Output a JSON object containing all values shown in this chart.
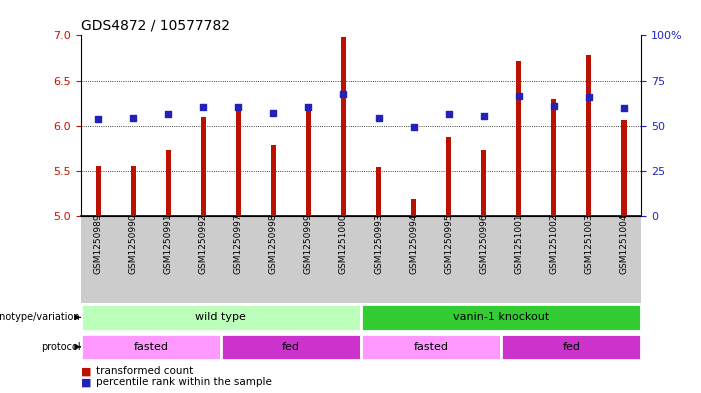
{
  "title": "GDS4872 / 10577782",
  "samples": [
    "GSM1250989",
    "GSM1250990",
    "GSM1250991",
    "GSM1250992",
    "GSM1250997",
    "GSM1250998",
    "GSM1250999",
    "GSM1251000",
    "GSM1250993",
    "GSM1250994",
    "GSM1250995",
    "GSM1250996",
    "GSM1251001",
    "GSM1251002",
    "GSM1251003",
    "GSM1251004"
  ],
  "bar_values": [
    5.56,
    5.55,
    5.73,
    6.1,
    6.2,
    5.79,
    6.16,
    6.98,
    5.54,
    5.19,
    5.88,
    5.73,
    6.72,
    6.3,
    6.78,
    6.06
  ],
  "dot_values": [
    6.08,
    6.09,
    6.13,
    6.21,
    6.21,
    6.14,
    6.21,
    6.35,
    6.09,
    5.99,
    6.13,
    6.11,
    6.33,
    6.22,
    6.32,
    6.2
  ],
  "ylim_left": [
    5.0,
    7.0
  ],
  "ylim_right": [
    0,
    100
  ],
  "yticks_left": [
    5.0,
    5.5,
    6.0,
    6.5,
    7.0
  ],
  "yticks_right": [
    0,
    25,
    50,
    75,
    100
  ],
  "ytick_labels_right": [
    "0",
    "25",
    "50",
    "75",
    "100%"
  ],
  "bar_color": "#bb1100",
  "dot_color": "#2222bb",
  "grid_color": "#000000",
  "bg_color": "#ffffff",
  "xtick_bg": "#cccccc",
  "genotype_groups": [
    {
      "label": "wild type",
      "start": 0,
      "end": 8,
      "color": "#bbffbb"
    },
    {
      "label": "vanin-1 knockout",
      "start": 8,
      "end": 16,
      "color": "#33cc33"
    }
  ],
  "protocol_groups": [
    {
      "label": "fasted",
      "start": 0,
      "end": 4,
      "color": "#ff99ff"
    },
    {
      "label": "fed",
      "start": 4,
      "end": 8,
      "color": "#cc33cc"
    },
    {
      "label": "fasted",
      "start": 8,
      "end": 12,
      "color": "#ff99ff"
    },
    {
      "label": "fed",
      "start": 12,
      "end": 16,
      "color": "#cc33cc"
    }
  ],
  "legend_items": [
    {
      "label": "transformed count",
      "color": "#bb1100"
    },
    {
      "label": "percentile rank within the sample",
      "color": "#2222bb"
    }
  ],
  "ylabel_left_color": "#cc1100",
  "ylabel_right_color": "#2222cc",
  "title_fontsize": 10,
  "bar_width": 0.15
}
